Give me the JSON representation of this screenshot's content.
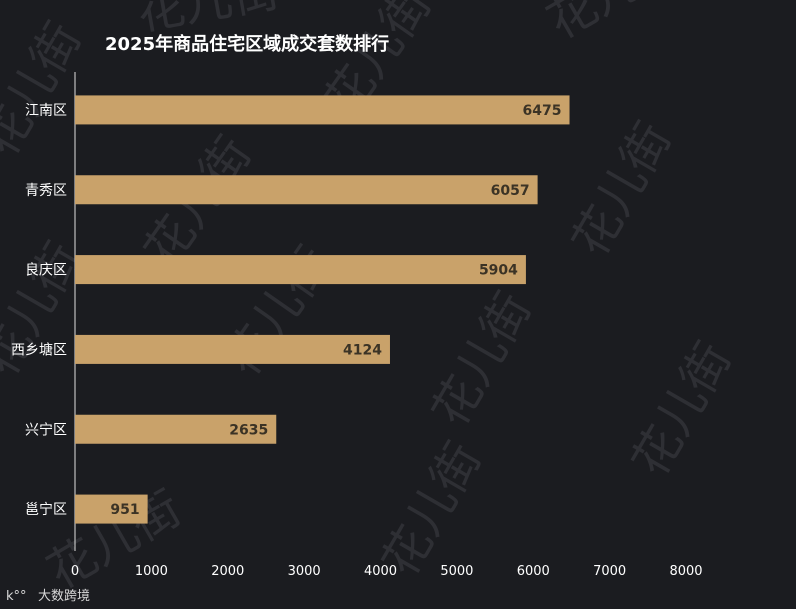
{
  "chart_data": {
    "type": "bar",
    "orientation": "horizontal",
    "title": "2025年商品住宅区域成交套数排行",
    "categories": [
      "江南区",
      "青秀区",
      "良庆区",
      "西乡塘区",
      "兴宁区",
      "邕宁区"
    ],
    "values": [
      6475,
      6057,
      5904,
      4124,
      2635,
      951
    ],
    "xlim": [
      0,
      8000
    ],
    "xticks": [
      0,
      1000,
      2000,
      3000,
      4000,
      5000,
      6000,
      7000,
      8000
    ],
    "grid": false,
    "bar_color": "#c9a26a"
  },
  "watermark": {
    "text": "花儿街"
  },
  "footer": {
    "logo_text": "大数跨境"
  }
}
